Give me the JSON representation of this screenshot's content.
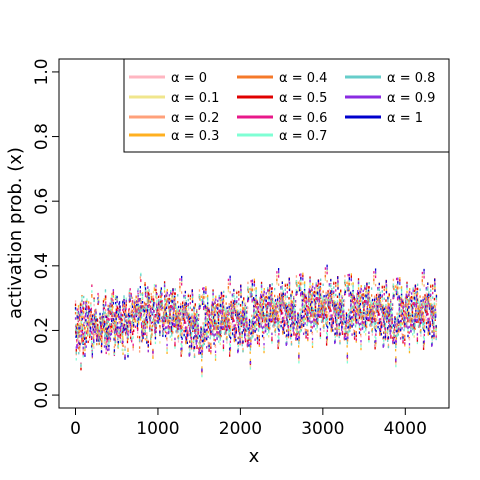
{
  "chart_data": {
    "type": "scatter",
    "title": "",
    "xlabel": "x",
    "ylabel": "activation prob. (x)",
    "xlim": [
      -200,
      4530
    ],
    "ylim": [
      -0.04,
      1.04
    ],
    "x_ticks": [
      0,
      1000,
      2000,
      3000,
      4000
    ],
    "y_ticks": [
      0.0,
      0.2,
      0.4,
      0.6,
      0.8,
      1.0
    ],
    "x_tick_labels": [
      "0",
      "1000",
      "2000",
      "3000",
      "4000"
    ],
    "y_tick_labels": [
      "0.0",
      "0.2",
      "0.4",
      "0.6",
      "0.8",
      "1.0"
    ],
    "grid": false,
    "legend_position": "top-right",
    "n_points": 4380,
    "series": [
      {
        "name": "α = 0",
        "color": "#FFB6C1"
      },
      {
        "name": "α = 0.1",
        "color": "#F0E68C"
      },
      {
        "name": "α = 0.2",
        "color": "#FFA07A"
      },
      {
        "name": "α = 0.3",
        "color": "#FFB020"
      },
      {
        "name": "α = 0.4",
        "color": "#F5792A"
      },
      {
        "name": "α = 0.5",
        "color": "#E00000"
      },
      {
        "name": "α = 0.6",
        "color": "#E8188A"
      },
      {
        "name": "α = 0.7",
        "color": "#7FFFD4"
      },
      {
        "name": "α = 0.8",
        "color": "#66CDCA"
      },
      {
        "name": "α = 0.9",
        "color": "#8A2BE2"
      },
      {
        "name": "α = 1",
        "color": "#0000CD"
      }
    ],
    "trend": {
      "x": [
        0,
        500,
        1000,
        1200,
        1500,
        2000,
        2500,
        3000,
        3500,
        4000,
        4380
      ],
      "y": [
        0.21,
        0.23,
        0.26,
        0.24,
        0.22,
        0.24,
        0.26,
        0.27,
        0.26,
        0.25,
        0.26
      ]
    },
    "spread": 0.075
  }
}
